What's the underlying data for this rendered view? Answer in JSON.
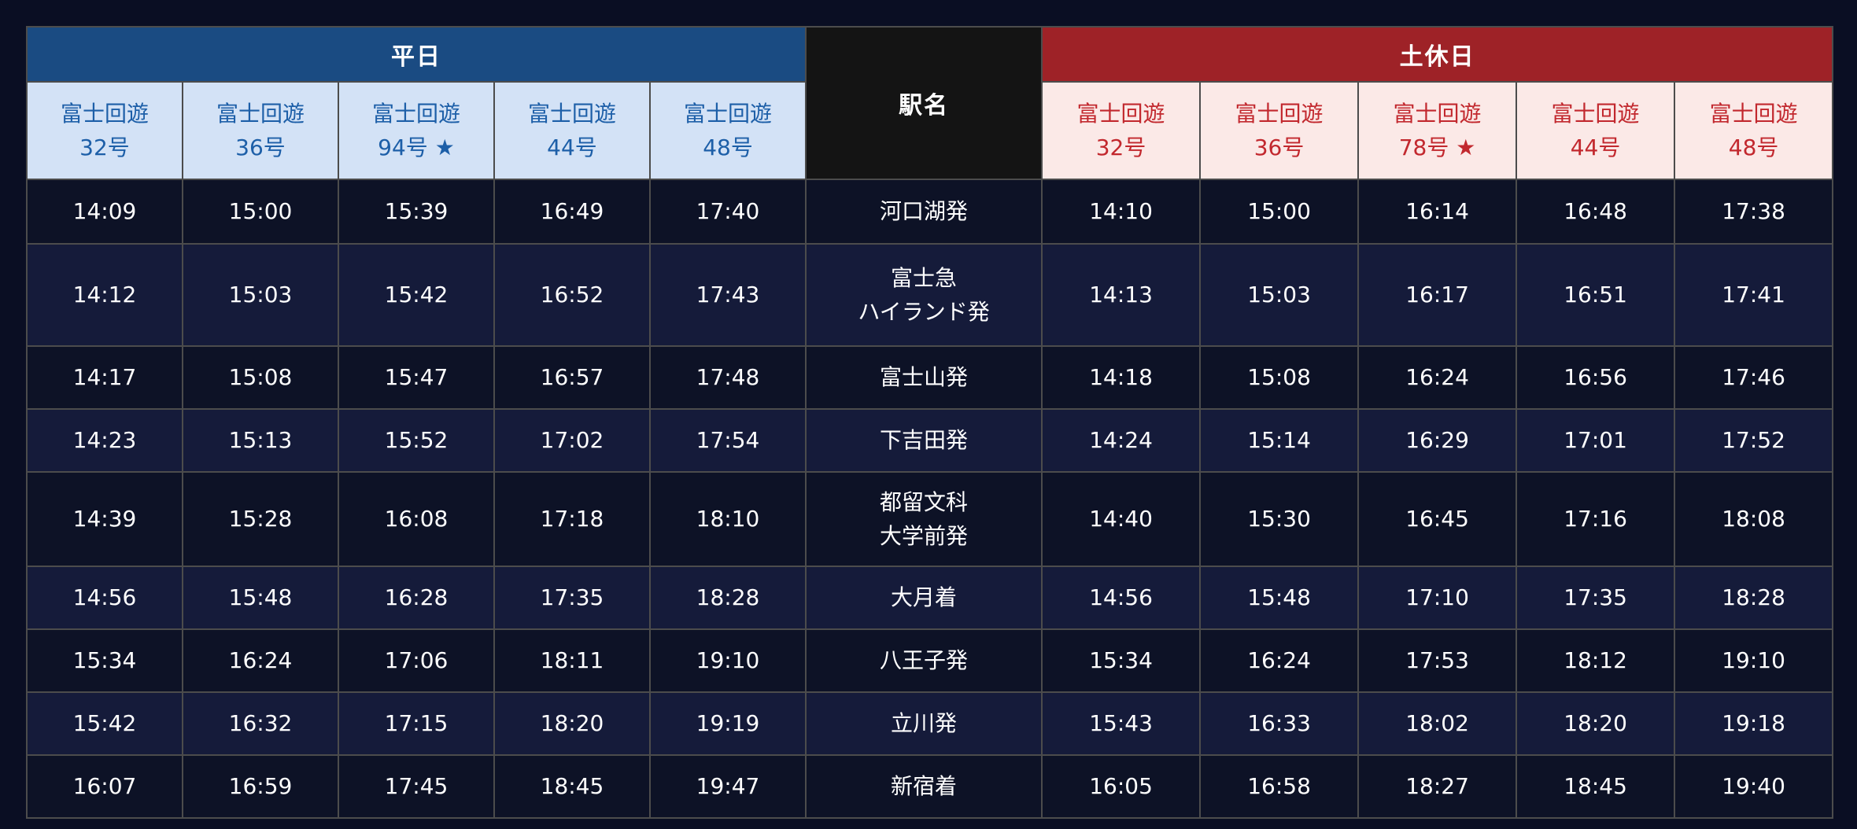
{
  "colors": {
    "weekday_header_bg": "#1a4b82",
    "holiday_header_bg": "#9e2227",
    "weekday_train_bg": "#d3e2f6",
    "holiday_train_bg": "#fbe9e7",
    "weekday_train_text": "#1d5fa8",
    "holiday_train_text": "#c2282e"
  },
  "table": {
    "header": {
      "weekday_label": "平日",
      "station_label": "駅名",
      "holiday_label": "土休日"
    },
    "weekday_trains": [
      {
        "name": "富士回遊",
        "number": "32号"
      },
      {
        "name": "富士回遊",
        "number": "36号"
      },
      {
        "name": "富士回遊",
        "number": "94号 ★"
      },
      {
        "name": "富士回遊",
        "number": "44号"
      },
      {
        "name": "富士回遊",
        "number": "48号"
      }
    ],
    "holiday_trains": [
      {
        "name": "富士回遊",
        "number": "32号"
      },
      {
        "name": "富士回遊",
        "number": "36号"
      },
      {
        "name": "富士回遊",
        "number": "78号 ★"
      },
      {
        "name": "富士回遊",
        "number": "44号"
      },
      {
        "name": "富士回遊",
        "number": "48号"
      }
    ],
    "rows": [
      {
        "station": "河口湖発",
        "weekday": [
          "14:09",
          "15:00",
          "15:39",
          "16:49",
          "17:40"
        ],
        "holiday": [
          "14:10",
          "15:00",
          "16:14",
          "16:48",
          "17:38"
        ]
      },
      {
        "station": "富士急\nハイランド発",
        "weekday": [
          "14:12",
          "15:03",
          "15:42",
          "16:52",
          "17:43"
        ],
        "holiday": [
          "14:13",
          "15:03",
          "16:17",
          "16:51",
          "17:41"
        ]
      },
      {
        "station": "富士山発",
        "weekday": [
          "14:17",
          "15:08",
          "15:47",
          "16:57",
          "17:48"
        ],
        "holiday": [
          "14:18",
          "15:08",
          "16:24",
          "16:56",
          "17:46"
        ]
      },
      {
        "station": "下吉田発",
        "weekday": [
          "14:23",
          "15:13",
          "15:52",
          "17:02",
          "17:54"
        ],
        "holiday": [
          "14:24",
          "15:14",
          "16:29",
          "17:01",
          "17:52"
        ]
      },
      {
        "station": "都留文科\n大学前発",
        "weekday": [
          "14:39",
          "15:28",
          "16:08",
          "17:18",
          "18:10"
        ],
        "holiday": [
          "14:40",
          "15:30",
          "16:45",
          "17:16",
          "18:08"
        ]
      },
      {
        "station": "大月着",
        "weekday": [
          "14:56",
          "15:48",
          "16:28",
          "17:35",
          "18:28"
        ],
        "holiday": [
          "14:56",
          "15:48",
          "17:10",
          "17:35",
          "18:28"
        ]
      },
      {
        "station": "八王子発",
        "weekday": [
          "15:34",
          "16:24",
          "17:06",
          "18:11",
          "19:10"
        ],
        "holiday": [
          "15:34",
          "16:24",
          "17:53",
          "18:12",
          "19:10"
        ]
      },
      {
        "station": "立川発",
        "weekday": [
          "15:42",
          "16:32",
          "17:15",
          "18:20",
          "19:19"
        ],
        "holiday": [
          "15:43",
          "16:33",
          "18:02",
          "18:20",
          "19:18"
        ]
      },
      {
        "station": "新宿着",
        "weekday": [
          "16:07",
          "16:59",
          "17:45",
          "18:45",
          "19:47"
        ],
        "holiday": [
          "16:05",
          "16:58",
          "18:27",
          "18:45",
          "19:40"
        ]
      }
    ]
  }
}
